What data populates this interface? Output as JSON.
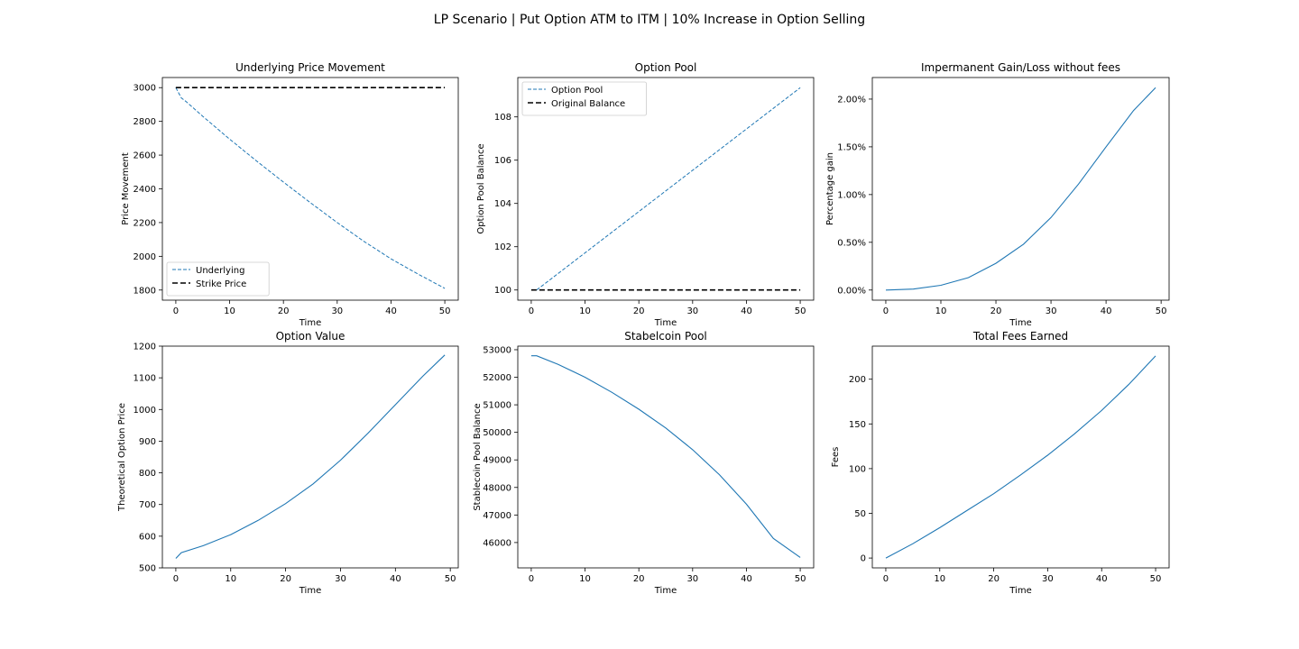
{
  "figure": {
    "suptitle": "LP Scenario | Put Option ATM to ITM | 10% Increase in Option Selling"
  },
  "colors": {
    "series_blue": "#1f77b4",
    "reference_black": "#000000"
  },
  "chart_data": [
    {
      "id": "underlying",
      "type": "line",
      "title": "Underlying Price Movement",
      "xlabel": "Time",
      "ylabel": "Price Movement",
      "xlim": [
        -2.5,
        52.5
      ],
      "ylim": [
        1740,
        3060
      ],
      "xticks": [
        0,
        10,
        20,
        30,
        40,
        50
      ],
      "yticks": [
        1800,
        2000,
        2200,
        2400,
        2600,
        2800,
        3000
      ],
      "ytick_labels": [
        "1800",
        "2000",
        "2200",
        "2400",
        "2600",
        "2800",
        "3000"
      ],
      "legend": "lower-left",
      "series": [
        {
          "name": "Underlying",
          "style": "dashed-thin",
          "color": "#1f77b4",
          "x": [
            0,
            1,
            2,
            5,
            10,
            15,
            20,
            25,
            30,
            35,
            40,
            45,
            50
          ],
          "y": [
            3000,
            2940,
            2915,
            2830,
            2695,
            2565,
            2440,
            2318,
            2200,
            2088,
            1985,
            1895,
            1810
          ]
        },
        {
          "name": "Strike Price",
          "style": "dashed-thick",
          "color": "#000000",
          "x": [
            0,
            50
          ],
          "y": [
            3000,
            3000
          ]
        }
      ]
    },
    {
      "id": "option_pool",
      "type": "line",
      "title": "Option Pool",
      "xlabel": "Time",
      "ylabel": "Option Pool Balance",
      "xlim": [
        -2.5,
        52.5
      ],
      "ylim": [
        99.53,
        109.82
      ],
      "xticks": [
        0,
        10,
        20,
        30,
        40,
        50
      ],
      "yticks": [
        100,
        102,
        104,
        106,
        108
      ],
      "ytick_labels": [
        "100",
        "102",
        "104",
        "106",
        "108"
      ],
      "legend": "upper-left",
      "series": [
        {
          "name": "Option Pool",
          "style": "dashed-thin",
          "color": "#1f77b4",
          "x": [
            1,
            50
          ],
          "y": [
            100,
            109.35
          ]
        },
        {
          "name": "Original Balance",
          "style": "dashed-thick",
          "color": "#000000",
          "x": [
            0,
            50
          ],
          "y": [
            100,
            100
          ]
        }
      ]
    },
    {
      "id": "impermanent",
      "type": "line",
      "title": "Impermanent Gain/Loss without fees",
      "xlabel": "Time",
      "ylabel": "Percentage gain",
      "xlim": [
        -2.45,
        51.45
      ],
      "ylim": [
        -0.106,
        2.226
      ],
      "xticks": [
        0,
        10,
        20,
        30,
        40,
        50
      ],
      "yticks": [
        0,
        0.5,
        1.0,
        1.5,
        2.0
      ],
      "ytick_labels": [
        "0.00%",
        "0.50%",
        "1.00%",
        "1.50%",
        "2.00%"
      ],
      "legend": "none",
      "series": [
        {
          "style": "solid",
          "color": "#1f77b4",
          "x": [
            0,
            5,
            10,
            15,
            20,
            25,
            30,
            35,
            40,
            45,
            49
          ],
          "y": [
            0,
            0.01,
            0.05,
            0.13,
            0.28,
            0.48,
            0.76,
            1.11,
            1.5,
            1.88,
            2.12
          ]
        }
      ]
    },
    {
      "id": "option_value",
      "type": "line",
      "title": "Option Value",
      "xlabel": "Time",
      "ylabel": "Theoretical Option Price",
      "xlim": [
        -2.45,
        51.45
      ],
      "ylim": [
        500,
        1200
      ],
      "xticks": [
        0,
        10,
        20,
        30,
        40,
        50
      ],
      "yticks": [
        500,
        600,
        700,
        800,
        900,
        1000,
        1100,
        1200
      ],
      "ytick_labels": [
        "500",
        "600",
        "700",
        "800",
        "900",
        "1000",
        "1100",
        "1200"
      ],
      "legend": "none",
      "series": [
        {
          "style": "solid",
          "color": "#1f77b4",
          "x": [
            0,
            1,
            5,
            10,
            15,
            20,
            25,
            30,
            35,
            40,
            45,
            49
          ],
          "y": [
            530,
            548,
            570,
            605,
            650,
            703,
            765,
            840,
            925,
            1015,
            1105,
            1172
          ]
        }
      ]
    },
    {
      "id": "stablecoin_pool",
      "type": "line",
      "title": "Stabelcoin Pool",
      "xlabel": "Time",
      "ylabel": "Stablecoin Pool Balance",
      "xlim": [
        -2.5,
        52.5
      ],
      "ylim": [
        45080,
        53130
      ],
      "xticks": [
        0,
        10,
        20,
        30,
        40,
        50
      ],
      "yticks": [
        46000,
        47000,
        48000,
        49000,
        50000,
        51000,
        52000,
        53000
      ],
      "ytick_labels": [
        "46000",
        "47000",
        "48000",
        "49000",
        "50000",
        "51000",
        "52000",
        "53000"
      ],
      "legend": "none",
      "series": [
        {
          "style": "solid",
          "color": "#1f77b4",
          "x": [
            0,
            1,
            5,
            10,
            15,
            20,
            25,
            30,
            35,
            40,
            45,
            50
          ],
          "y": [
            52780,
            52780,
            52470,
            52000,
            51450,
            50840,
            50160,
            49370,
            48460,
            47390,
            46150,
            45460
          ]
        }
      ]
    },
    {
      "id": "fees",
      "type": "line",
      "title": "Total Fees Earned",
      "xlabel": "Time",
      "ylabel": "Fees",
      "xlim": [
        -2.5,
        52.5
      ],
      "ylim": [
        -11,
        237
      ],
      "xticks": [
        0,
        10,
        20,
        30,
        40,
        50
      ],
      "yticks": [
        0,
        50,
        100,
        150,
        200
      ],
      "ytick_labels": [
        "0",
        "50",
        "100",
        "150",
        "200"
      ],
      "legend": "none",
      "series": [
        {
          "style": "solid",
          "color": "#1f77b4",
          "x": [
            0,
            5,
            10,
            15,
            20,
            25,
            30,
            35,
            40,
            45,
            50
          ],
          "y": [
            0,
            16,
            34,
            53,
            72,
            93,
            115,
            139,
            165,
            194,
            226
          ]
        }
      ]
    }
  ]
}
